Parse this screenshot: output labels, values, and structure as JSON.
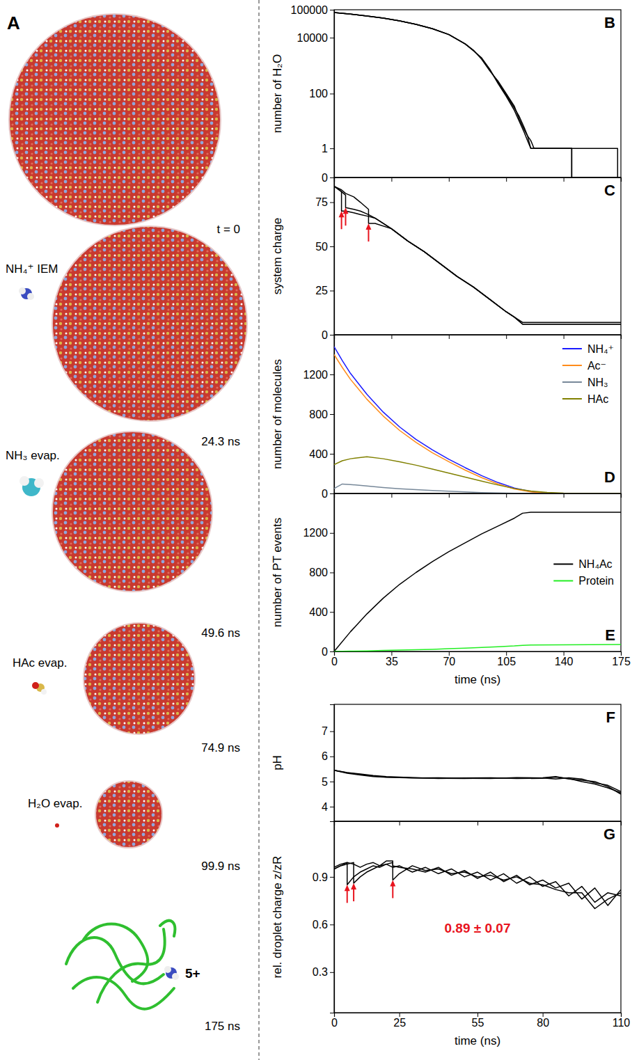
{
  "illustration": {
    "title": "A",
    "frames": [
      {
        "time": "t = 0"
      },
      {
        "time": "24.3 ns",
        "event": "NH₄⁺ IEM"
      },
      {
        "time": "49.6 ns",
        "event": "NH₃ evap."
      },
      {
        "time": "74.9 ns",
        "event": "HAc evap."
      },
      {
        "time": "99.9 ns",
        "event": "H₂O evap."
      },
      {
        "time": "175 ns",
        "charge": "5+"
      }
    ]
  },
  "chart_data": [
    {
      "type": "line",
      "title": "B",
      "y_label": "number of H₂O",
      "log": "y",
      "xlim": [
        0,
        175
      ],
      "xticks": [
        0,
        35,
        70,
        105,
        140,
        175
      ],
      "ylim": [
        0,
        100000
      ],
      "yticks": [
        0,
        1,
        100,
        10000,
        100000
      ],
      "tick_labels": "y",
      "x": [
        0,
        10,
        20,
        30,
        40,
        50,
        60,
        70,
        80,
        85,
        90,
        95,
        100,
        105,
        110,
        113,
        116,
        118,
        120,
        122,
        124,
        140,
        145,
        145,
        173,
        173,
        175
      ],
      "series": [
        {
          "color": "#000000",
          "values": [
            80000,
            70000,
            60000,
            50000,
            40000,
            30000,
            21000,
            13000,
            6000,
            3500,
            1800,
            700,
            250,
            90,
            30,
            15,
            6,
            3,
            2,
            1,
            1,
            1,
            1,
            0,
            0,
            0,
            0
          ]
        },
        {
          "color": "#000000",
          "values": [
            80000,
            70000,
            60000,
            50000,
            40000,
            30000,
            21000,
            13000,
            6000,
            3600,
            1700,
            650,
            280,
            100,
            35,
            12,
            5,
            3,
            1,
            1,
            1,
            1,
            1,
            1,
            1,
            0,
            0
          ]
        },
        {
          "color": "#000000",
          "values": [
            80000,
            70000,
            60000,
            50000,
            40000,
            30000,
            21000,
            13000,
            6000,
            3400,
            1900,
            750,
            230,
            80,
            25,
            10,
            4,
            2,
            1,
            1,
            1,
            1,
            1,
            0,
            0,
            0,
            0
          ]
        }
      ]
    },
    {
      "type": "line",
      "title": "C",
      "y_label": "system charge",
      "xlim": [
        0,
        175
      ],
      "xticks": [
        0,
        35,
        70,
        105,
        140,
        175
      ],
      "ylim": [
        0,
        89
      ],
      "yticks": [
        0,
        25,
        50,
        75
      ],
      "tick_labels": "y",
      "x": [
        0,
        4.5,
        4.5,
        7,
        7,
        12,
        16,
        21,
        21,
        25,
        35,
        45,
        55,
        65,
        75,
        85,
        95,
        105,
        110,
        115,
        175
      ],
      "series": [
        {
          "color": "#000000",
          "values": [
            84,
            81,
            70,
            70,
            70,
            69,
            68,
            67,
            67,
            66,
            60,
            53,
            47,
            40,
            33,
            27,
            20,
            13,
            10,
            6,
            6
          ]
        },
        {
          "color": "#000000",
          "values": [
            84,
            81,
            81,
            79,
            72,
            71,
            70,
            68,
            68,
            66,
            60,
            53,
            47,
            40,
            33,
            27,
            20,
            13,
            10,
            7,
            7
          ]
        },
        {
          "color": "#000000",
          "values": [
            84,
            82,
            82,
            80,
            80,
            78,
            75,
            71,
            63,
            63,
            60,
            53,
            47,
            40,
            33,
            27,
            20,
            13,
            10,
            6,
            6
          ]
        }
      ],
      "arrows": [
        {
          "x": 4.5,
          "y": 70
        },
        {
          "x": 7,
          "y": 72
        },
        {
          "x": 21,
          "y": 63
        }
      ]
    },
    {
      "type": "line",
      "title": "D",
      "y_label": "number of molecules",
      "legend": "upper right",
      "xlim": [
        0,
        175
      ],
      "xticks": [
        0,
        35,
        70,
        105,
        140,
        175
      ],
      "ylim": [
        0,
        1600
      ],
      "yticks": [
        0,
        400,
        800,
        1200
      ],
      "tick_labels": "y",
      "x": [
        0,
        5,
        10,
        20,
        30,
        40,
        50,
        60,
        70,
        80,
        90,
        100,
        110,
        120,
        130,
        140,
        150,
        175
      ],
      "series": [
        {
          "name": "NH₄⁺",
          "color": "#1a1aff",
          "values": [
            1480,
            1340,
            1210,
            1000,
            820,
            670,
            545,
            440,
            345,
            260,
            180,
            110,
            55,
            20,
            5,
            0,
            0,
            0
          ]
        },
        {
          "name": "Ac⁻",
          "color": "#ff8c1a",
          "values": [
            1400,
            1270,
            1150,
            950,
            780,
            635,
            515,
            410,
            320,
            235,
            160,
            95,
            45,
            15,
            4,
            0,
            0,
            0
          ]
        },
        {
          "name": "NH₃",
          "color": "#778899",
          "values": [
            50,
            95,
            90,
            75,
            60,
            48,
            38,
            30,
            22,
            15,
            9,
            5,
            2,
            0,
            0,
            0,
            0,
            0
          ]
        },
        {
          "name": "HAc",
          "color": "#808000",
          "values": [
            290,
            330,
            350,
            370,
            350,
            320,
            285,
            245,
            205,
            165,
            125,
            85,
            50,
            25,
            10,
            3,
            0,
            0
          ]
        }
      ]
    },
    {
      "type": "line",
      "title": "E",
      "y_label": "number of PT events",
      "x_label": "time (ns)",
      "legend": "right",
      "xlim": [
        0,
        175
      ],
      "xticks": [
        0,
        35,
        70,
        105,
        140,
        175
      ],
      "ylim": [
        0,
        1600
      ],
      "yticks": [
        0,
        400,
        800,
        1200
      ],
      "x": [
        0,
        10,
        20,
        30,
        40,
        50,
        60,
        70,
        80,
        90,
        100,
        110,
        115,
        120,
        175
      ],
      "series": [
        {
          "name": "NH₄Ac",
          "color": "#000000",
          "values": [
            0,
            200,
            380,
            540,
            680,
            800,
            910,
            1010,
            1100,
            1190,
            1270,
            1350,
            1400,
            1410,
            1410
          ]
        },
        {
          "name": "Protein",
          "color": "#22ee22",
          "values": [
            0,
            3,
            6,
            10,
            14,
            18,
            22,
            28,
            34,
            40,
            48,
            56,
            62,
            66,
            70
          ]
        }
      ]
    },
    {
      "type": "line",
      "title": "F",
      "y_label": "pH",
      "xlim": [
        0,
        110
      ],
      "xticks": [
        0,
        25,
        55,
        80,
        110
      ],
      "ylim": [
        3.42,
        8.07
      ],
      "yticks": [
        4,
        5,
        6,
        7
      ],
      "tick_labels": "y",
      "x": [
        0,
        5,
        10,
        15,
        20,
        30,
        40,
        50,
        60,
        70,
        80,
        85,
        90,
        95,
        100,
        105,
        110
      ],
      "series": [
        {
          "color": "#000000",
          "values": [
            5.45,
            5.35,
            5.28,
            5.22,
            5.18,
            5.15,
            5.13,
            5.12,
            5.14,
            5.13,
            5.15,
            5.2,
            5.1,
            5.05,
            5.0,
            4.8,
            4.5
          ]
        },
        {
          "color": "#000000",
          "values": [
            5.45,
            5.33,
            5.26,
            5.2,
            5.17,
            5.14,
            5.15,
            5.13,
            5.12,
            5.16,
            5.14,
            5.1,
            5.15,
            5.1,
            4.95,
            4.85,
            4.6
          ]
        },
        {
          "color": "#000000",
          "values": [
            5.45,
            5.36,
            5.3,
            5.24,
            5.2,
            5.16,
            5.12,
            5.14,
            5.15,
            5.12,
            5.13,
            5.18,
            5.12,
            5.0,
            4.9,
            4.75,
            4.55
          ]
        }
      ]
    },
    {
      "type": "line",
      "title": "G",
      "y_label": "rel. droplet charge z/zR",
      "x_label": "time (ns)",
      "xlim": [
        0,
        110
      ],
      "xticks": [
        0,
        25,
        55,
        80,
        110
      ],
      "ylim": [
        0.045,
        1.25
      ],
      "yticks": [
        0.3,
        0.6,
        0.9
      ],
      "x": [
        0,
        2.5,
        5,
        5,
        7.5,
        7.5,
        10,
        12.5,
        15,
        17.5,
        20,
        22.5,
        22.5,
        25,
        30,
        35,
        40,
        45,
        50,
        55,
        60,
        65,
        70,
        75,
        80,
        85,
        90,
        95,
        100,
        105,
        110
      ],
      "series": [
        {
          "color": "#000000",
          "values": [
            0.95,
            0.97,
            0.99,
            0.85,
            0.9,
            0.9,
            0.93,
            0.95,
            0.97,
            0.96,
            0.98,
            0.96,
            0.96,
            0.97,
            0.93,
            0.96,
            0.92,
            0.95,
            0.9,
            0.93,
            0.88,
            0.92,
            0.86,
            0.9,
            0.84,
            0.87,
            0.78,
            0.84,
            0.74,
            0.8,
            0.78
          ]
        },
        {
          "color": "#000000",
          "values": [
            0.95,
            0.97,
            0.98,
            0.98,
            0.99,
            0.86,
            0.9,
            0.93,
            0.95,
            0.97,
            0.98,
            0.99,
            0.97,
            0.96,
            0.95,
            0.93,
            0.96,
            0.91,
            0.94,
            0.89,
            0.93,
            0.87,
            0.91,
            0.85,
            0.88,
            0.83,
            0.86,
            0.76,
            0.83,
            0.72,
            0.82
          ]
        },
        {
          "color": "#000000",
          "values": [
            0.96,
            0.98,
            0.99,
            0.99,
            0.98,
            0.98,
            0.96,
            0.98,
            0.99,
            0.97,
            1.0,
            1.0,
            0.88,
            0.92,
            0.97,
            0.94,
            0.95,
            0.92,
            0.93,
            0.9,
            0.91,
            0.88,
            0.9,
            0.86,
            0.85,
            0.82,
            0.8,
            0.8,
            0.7,
            0.76,
            0.8
          ]
        }
      ],
      "arrows": [
        {
          "x": 5,
          "y": 0.85
        },
        {
          "x": 7.5,
          "y": 0.86
        },
        {
          "x": 22.5,
          "y": 0.88
        }
      ],
      "annotations": [
        {
          "text": "0.89 ± 0.07",
          "x": 55,
          "y": 0.55
        }
      ]
    }
  ]
}
